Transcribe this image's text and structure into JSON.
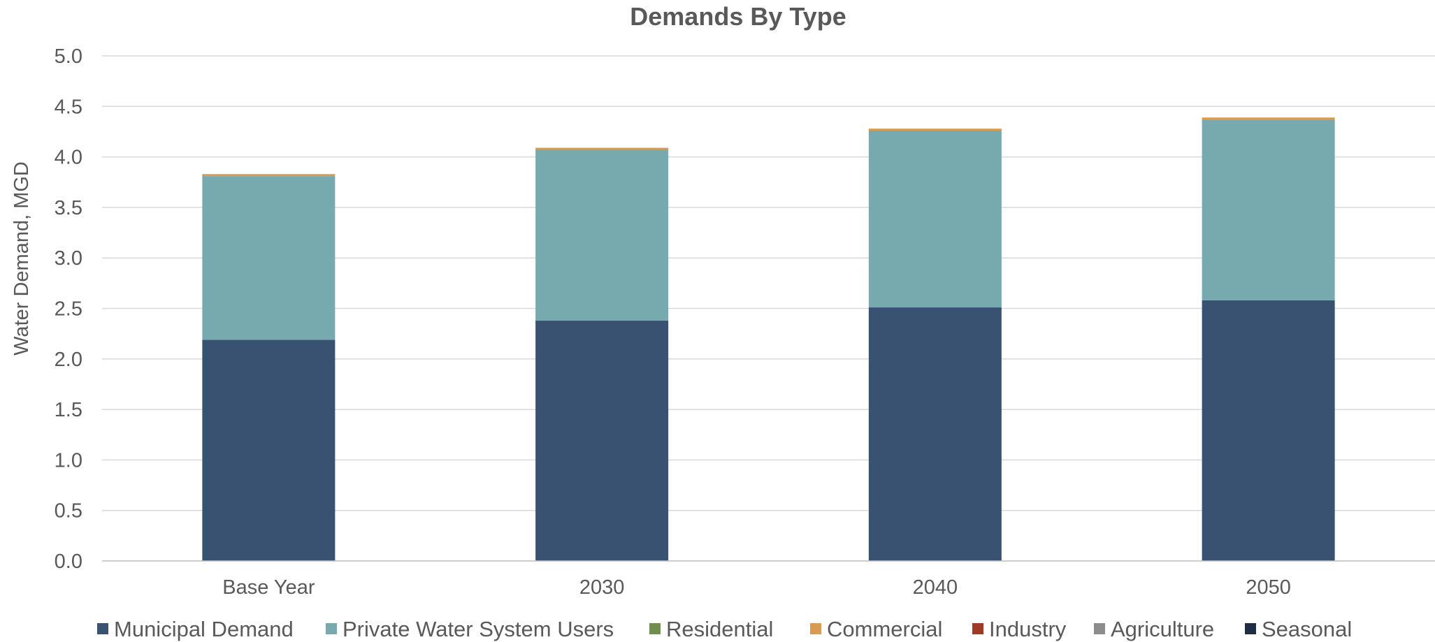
{
  "chart_data": {
    "type": "bar",
    "stacked": true,
    "title": "Demands By Type",
    "xlabel": "",
    "ylabel": "Water Demand, MGD",
    "ylim": [
      0,
      5.0
    ],
    "ytick_step": 0.5,
    "yticks": [
      "0.0",
      "0.5",
      "1.0",
      "1.5",
      "2.0",
      "2.5",
      "3.0",
      "3.5",
      "4.0",
      "4.5",
      "5.0"
    ],
    "grid": true,
    "legend_position": "bottom",
    "categories": [
      "Base Year",
      "2030",
      "2040",
      "2050"
    ],
    "series": [
      {
        "name": "Municipal Demand",
        "color": "#3a5272",
        "values": [
          2.19,
          2.38,
          2.51,
          2.58
        ]
      },
      {
        "name": "Private Water System Users",
        "color": "#76aaae",
        "values": [
          1.62,
          1.69,
          1.75,
          1.79
        ]
      },
      {
        "name": "Residential",
        "color": "#6e8d4e",
        "values": [
          0.0,
          0.0,
          0.0,
          0.0
        ]
      },
      {
        "name": "Commercial",
        "color": "#d99b52",
        "values": [
          0.02,
          0.02,
          0.02,
          0.02
        ]
      },
      {
        "name": "Industry",
        "color": "#9e3a26",
        "values": [
          0.0,
          0.0,
          0.0,
          0.0
        ]
      },
      {
        "name": "Agriculture",
        "color": "#8c8c8c",
        "values": [
          0.0,
          0.0,
          0.0,
          0.0
        ]
      },
      {
        "name": "Seasonal",
        "color": "#1f2e46",
        "values": [
          0.0,
          0.0,
          0.0,
          0.0
        ]
      }
    ]
  }
}
